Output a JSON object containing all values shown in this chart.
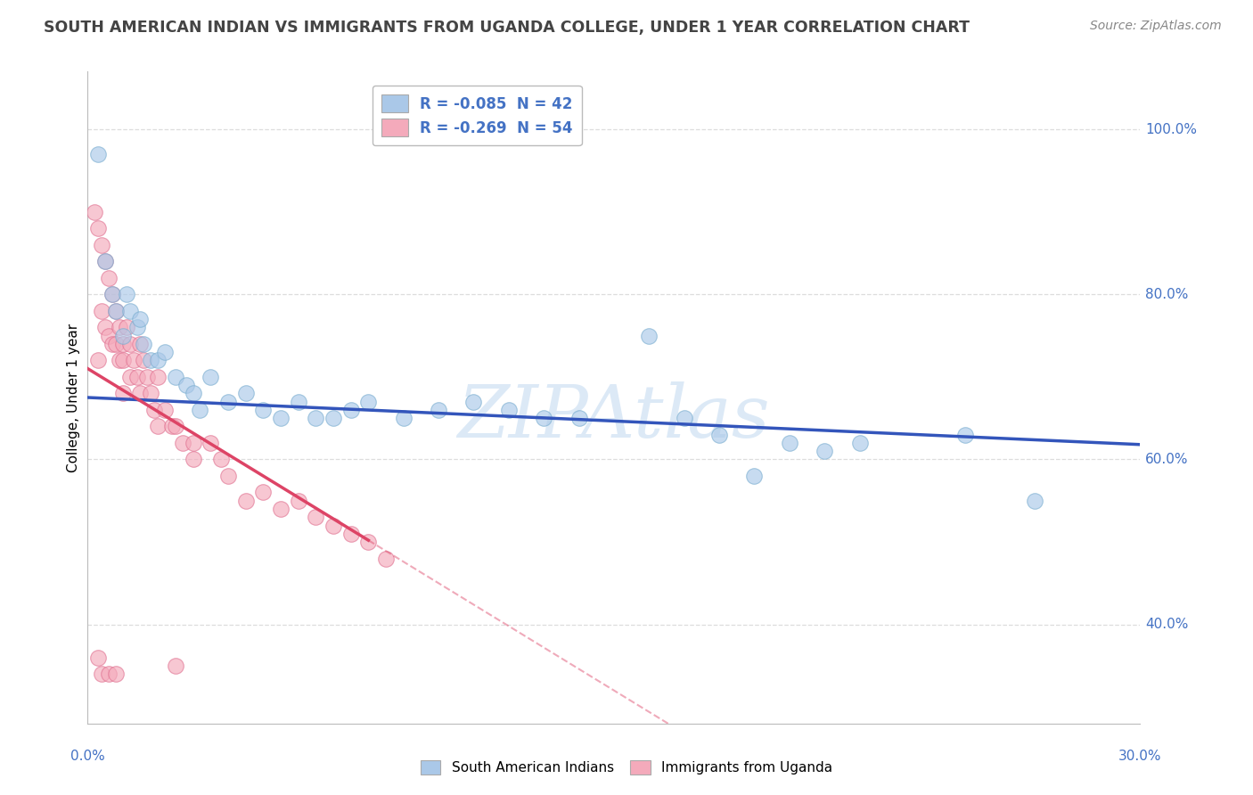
{
  "title": "SOUTH AMERICAN INDIAN VS IMMIGRANTS FROM UGANDA COLLEGE, UNDER 1 YEAR CORRELATION CHART",
  "source": "Source: ZipAtlas.com",
  "ylabel": "College, Under 1 year",
  "legend_entries": [
    {
      "label": "R = -0.085  N = 42",
      "facecolor": "#aac8e8",
      "edgecolor": "#7aaed0",
      "textcolor": "#4472c4"
    },
    {
      "label": "R = -0.269  N = 54",
      "facecolor": "#f4aabb",
      "edgecolor": "#e07090",
      "textcolor": "#4472c4"
    }
  ],
  "bottom_legend": [
    {
      "label": "South American Indians",
      "facecolor": "#aac8e8",
      "edgecolor": "#7aaed0"
    },
    {
      "label": "Immigrants from Uganda",
      "facecolor": "#f4aabb",
      "edgecolor": "#e07090"
    }
  ],
  "xlim": [
    0.0,
    30.0
  ],
  "ylim": [
    28.0,
    107.0
  ],
  "ytick_values": [
    100,
    80,
    60,
    40
  ],
  "ytick_labels": [
    "100.0%",
    "80.0%",
    "60.0%",
    "40.0%"
  ],
  "xtick_left": "0.0%",
  "xtick_right": "30.0%",
  "grid_color": "#dddddd",
  "background_color": "#ffffff",
  "watermark_text": "ZIPAtlas",
  "watermark_color": "#c0d8f0",
  "blue_scatter_x": [
    0.3,
    0.5,
    0.7,
    0.8,
    1.0,
    1.1,
    1.2,
    1.4,
    1.5,
    1.6,
    1.8,
    2.0,
    2.2,
    2.5,
    2.8,
    3.0,
    3.2,
    3.5,
    4.0,
    4.5,
    5.0,
    5.5,
    6.0,
    6.5,
    7.0,
    7.5,
    8.0,
    9.0,
    10.0,
    11.0,
    12.0,
    13.0,
    14.0,
    16.0,
    17.0,
    18.0,
    19.0,
    20.0,
    21.0,
    22.0,
    25.0,
    27.0
  ],
  "blue_scatter_y": [
    97.0,
    84.0,
    80.0,
    78.0,
    75.0,
    80.0,
    78.0,
    76.0,
    77.0,
    74.0,
    72.0,
    72.0,
    73.0,
    70.0,
    69.0,
    68.0,
    66.0,
    70.0,
    67.0,
    68.0,
    66.0,
    65.0,
    67.0,
    65.0,
    65.0,
    66.0,
    67.0,
    65.0,
    66.0,
    67.0,
    66.0,
    65.0,
    65.0,
    75.0,
    65.0,
    63.0,
    58.0,
    62.0,
    61.0,
    62.0,
    63.0,
    55.0
  ],
  "pink_scatter_x": [
    0.2,
    0.3,
    0.3,
    0.4,
    0.4,
    0.5,
    0.5,
    0.6,
    0.6,
    0.7,
    0.7,
    0.8,
    0.8,
    0.9,
    0.9,
    1.0,
    1.0,
    1.0,
    1.1,
    1.2,
    1.2,
    1.3,
    1.4,
    1.5,
    1.5,
    1.6,
    1.7,
    1.8,
    1.9,
    2.0,
    2.0,
    2.2,
    2.4,
    2.5,
    2.7,
    3.0,
    3.0,
    3.5,
    3.8,
    4.0,
    4.5,
    5.0,
    5.5,
    6.0,
    6.5,
    7.0,
    7.5,
    8.0,
    8.5,
    0.3,
    0.4,
    0.6,
    0.8,
    2.5
  ],
  "pink_scatter_y": [
    90.0,
    88.0,
    72.0,
    86.0,
    78.0,
    84.0,
    76.0,
    82.0,
    75.0,
    80.0,
    74.0,
    78.0,
    74.0,
    76.0,
    72.0,
    74.0,
    72.0,
    68.0,
    76.0,
    74.0,
    70.0,
    72.0,
    70.0,
    74.0,
    68.0,
    72.0,
    70.0,
    68.0,
    66.0,
    70.0,
    64.0,
    66.0,
    64.0,
    64.0,
    62.0,
    62.0,
    60.0,
    62.0,
    60.0,
    58.0,
    55.0,
    56.0,
    54.0,
    55.0,
    53.0,
    52.0,
    51.0,
    50.0,
    48.0,
    36.0,
    34.0,
    34.0,
    34.0,
    35.0
  ],
  "blue_line_intercept": 67.5,
  "blue_line_slope": -0.19,
  "pink_line_intercept": 71.0,
  "pink_line_slope": -2.6,
  "pink_solid_end": 8.0,
  "blue_line_color": "#3355bb",
  "pink_line_color": "#dd4466",
  "title_fontsize": 12.5,
  "source_fontsize": 10,
  "tick_fontsize": 11,
  "ylabel_fontsize": 11,
  "legend_fontsize": 12,
  "scatter_size": 160,
  "scatter_alpha": 0.65
}
